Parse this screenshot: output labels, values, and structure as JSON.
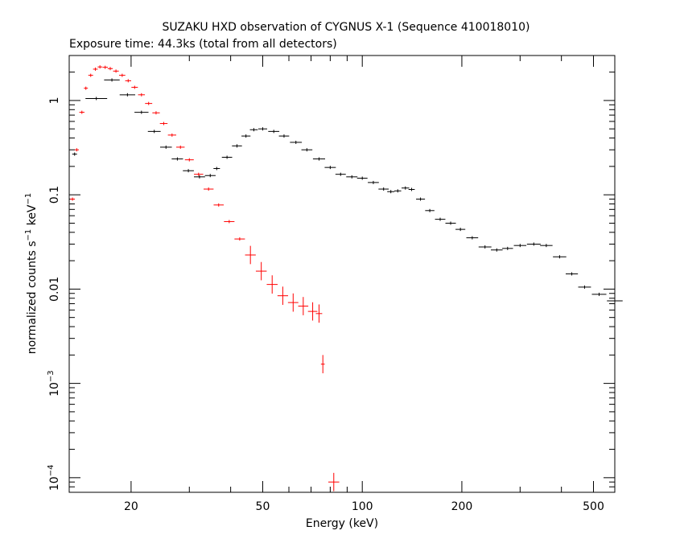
{
  "chart_data": {
    "type": "scatter",
    "title": "SUZAKU HXD observation of CYGNUS X-1 (Sequence 410018010)",
    "subtitle": "Exposure time: 44.3ks (total from all detectors)",
    "xlabel": "Energy (keV)",
    "ylabel_main": "normalized counts s",
    "ylabel_sup1": "−1",
    "ylabel_mid": " keV",
    "ylabel_sup2": "−1",
    "x_scale": "log",
    "y_scale": "log",
    "xlim": [
      13,
      580
    ],
    "ylim": [
      7e-05,
      3.0
    ],
    "x_ticks": [
      {
        "value": 20,
        "label": "20"
      },
      {
        "value": 50,
        "label": "50"
      },
      {
        "value": 100,
        "label": "100"
      },
      {
        "value": 200,
        "label": "200"
      },
      {
        "value": 500,
        "label": "500"
      }
    ],
    "y_ticks": [
      {
        "value": 1,
        "label": "1"
      },
      {
        "value": 0.1,
        "label": "0.1"
      },
      {
        "value": 0.01,
        "label": "0.01"
      },
      {
        "value": 0.001,
        "label": "10",
        "sup": "−3"
      },
      {
        "value": 0.0001,
        "label": "10",
        "sup": "−4"
      }
    ],
    "series": [
      {
        "color": "#ff0000",
        "points": [
          [
            13.3,
            0.09
          ],
          [
            13.7,
            0.3
          ],
          [
            14.2,
            0.75
          ],
          [
            14.6,
            1.35
          ],
          [
            15.1,
            1.85
          ],
          [
            15.6,
            2.15
          ],
          [
            16.1,
            2.27
          ],
          [
            16.7,
            2.25
          ],
          [
            17.3,
            2.18
          ],
          [
            18.0,
            2.05
          ],
          [
            18.8,
            1.85
          ],
          [
            19.6,
            1.62
          ],
          [
            20.5,
            1.38
          ],
          [
            21.5,
            1.15
          ],
          [
            22.6,
            0.93
          ],
          [
            23.8,
            0.74
          ],
          [
            25.1,
            0.57
          ],
          [
            26.6,
            0.43
          ],
          [
            28.2,
            0.32
          ],
          [
            30.0,
            0.235
          ],
          [
            32.0,
            0.165
          ],
          [
            34.3,
            0.115
          ],
          [
            36.8,
            0.078
          ],
          [
            39.6,
            0.052
          ],
          [
            42.6,
            0.034
          ],
          [
            45.9,
            0.023
          ],
          [
            49.5,
            0.0155
          ],
          [
            53.4,
            0.0112
          ],
          [
            57.5,
            0.0085
          ],
          [
            61.8,
            0.0072
          ],
          [
            66.3,
            0.0066
          ],
          [
            70.8,
            0.0058
          ],
          [
            74.0,
            0.0055
          ],
          [
            76.0,
            0.0016
          ],
          [
            82.0,
            9e-05
          ]
        ]
      },
      {
        "color": "#000000",
        "points": [
          [
            13.5,
            0.27
          ],
          [
            15.7,
            1.05
          ],
          [
            17.5,
            1.65
          ],
          [
            19.5,
            1.15
          ],
          [
            21.5,
            0.75
          ],
          [
            23.5,
            0.47
          ],
          [
            25.5,
            0.32
          ],
          [
            27.6,
            0.24
          ],
          [
            29.8,
            0.18
          ],
          [
            32.2,
            0.155
          ],
          [
            34.7,
            0.16
          ],
          [
            36.3,
            0.19
          ],
          [
            39.0,
            0.25
          ],
          [
            41.8,
            0.33
          ],
          [
            44.5,
            0.42
          ],
          [
            47.0,
            0.49
          ],
          [
            50.0,
            0.5
          ],
          [
            54.0,
            0.47
          ],
          [
            58.0,
            0.42
          ],
          [
            63.0,
            0.36
          ],
          [
            68.0,
            0.3
          ],
          [
            74.0,
            0.24
          ],
          [
            80.0,
            0.195
          ],
          [
            86.0,
            0.165
          ],
          [
            93.0,
            0.155
          ],
          [
            100.0,
            0.15
          ],
          [
            108.0,
            0.135
          ],
          [
            116.0,
            0.115
          ],
          [
            122.0,
            0.108
          ],
          [
            128.0,
            0.11
          ],
          [
            135.0,
            0.118
          ],
          [
            141.0,
            0.114
          ],
          [
            150.0,
            0.09
          ],
          [
            160.0,
            0.068
          ],
          [
            172.0,
            0.055
          ],
          [
            185.0,
            0.05
          ],
          [
            198.0,
            0.043
          ],
          [
            215.0,
            0.035
          ],
          [
            235.0,
            0.028
          ],
          [
            255.0,
            0.026
          ],
          [
            275.0,
            0.027
          ],
          [
            300.0,
            0.029
          ],
          [
            330.0,
            0.03
          ],
          [
            360.0,
            0.029
          ],
          [
            395.0,
            0.022
          ],
          [
            430.0,
            0.0145
          ],
          [
            470.0,
            0.0105
          ],
          [
            520.0,
            0.0088
          ],
          [
            580.0,
            0.0075
          ]
        ]
      }
    ]
  }
}
